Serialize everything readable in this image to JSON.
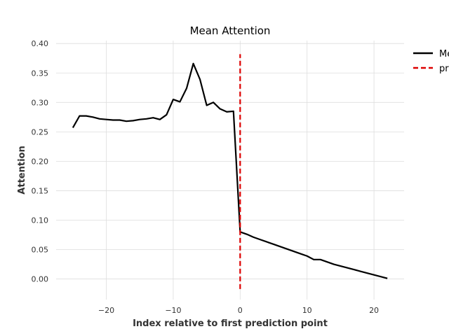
{
  "chart_data": {
    "type": "line",
    "title": "Mean Attention",
    "xlabel": "Index relative to first prediction point",
    "ylabel": "Attention",
    "xlim": [
      -27.5,
      24.5
    ],
    "ylim": [
      -0.035,
      0.405
    ],
    "x_ticks": [
      -20,
      -10,
      0,
      10,
      20
    ],
    "y_ticks": [
      0.0,
      0.05,
      0.1,
      0.15,
      0.2,
      0.25,
      0.3,
      0.35,
      0.4
    ],
    "x_tick_labels": [
      "−20",
      "−10",
      "0",
      "10",
      "20"
    ],
    "y_tick_labels": [
      "0.00",
      "0.05",
      "0.10",
      "0.15",
      "0.20",
      "0.25",
      "0.30",
      "0.35",
      "0.40"
    ],
    "grid": true,
    "legend_placement": "upper-right-outside",
    "series": [
      {
        "name": "Mean",
        "color": "#000000",
        "style": "solid",
        "x": [
          -25,
          -24,
          -23,
          -22,
          -21,
          -20,
          -19,
          -18,
          -17,
          -16,
          -15,
          -14,
          -13,
          -12,
          -11,
          -10,
          -9,
          -8,
          -7,
          -6,
          -5,
          -4,
          -3,
          -2,
          -1,
          0,
          1,
          2,
          3,
          4,
          5,
          6,
          7,
          8,
          9,
          10,
          11,
          12,
          13,
          14,
          15,
          16,
          17,
          18,
          19,
          20,
          21,
          22
        ],
        "y": [
          0.257,
          0.277,
          0.277,
          0.275,
          0.272,
          0.271,
          0.27,
          0.27,
          0.268,
          0.269,
          0.271,
          0.272,
          0.274,
          0.271,
          0.279,
          0.305,
          0.301,
          0.324,
          0.366,
          0.339,
          0.295,
          0.3,
          0.289,
          0.284,
          0.285,
          0.08,
          0.076,
          0.071,
          0.067,
          0.063,
          0.059,
          0.055,
          0.051,
          0.047,
          0.043,
          0.039,
          0.033,
          0.033,
          0.029,
          0.025,
          0.022,
          0.019,
          0.016,
          0.013,
          0.01,
          0.007,
          0.004,
          0.001
        ]
      },
      {
        "name": "pr",
        "color": "#dd0000",
        "style": "dashed",
        "x": [
          0,
          0
        ],
        "y": [
          -0.017,
          0.382
        ]
      }
    ]
  }
}
